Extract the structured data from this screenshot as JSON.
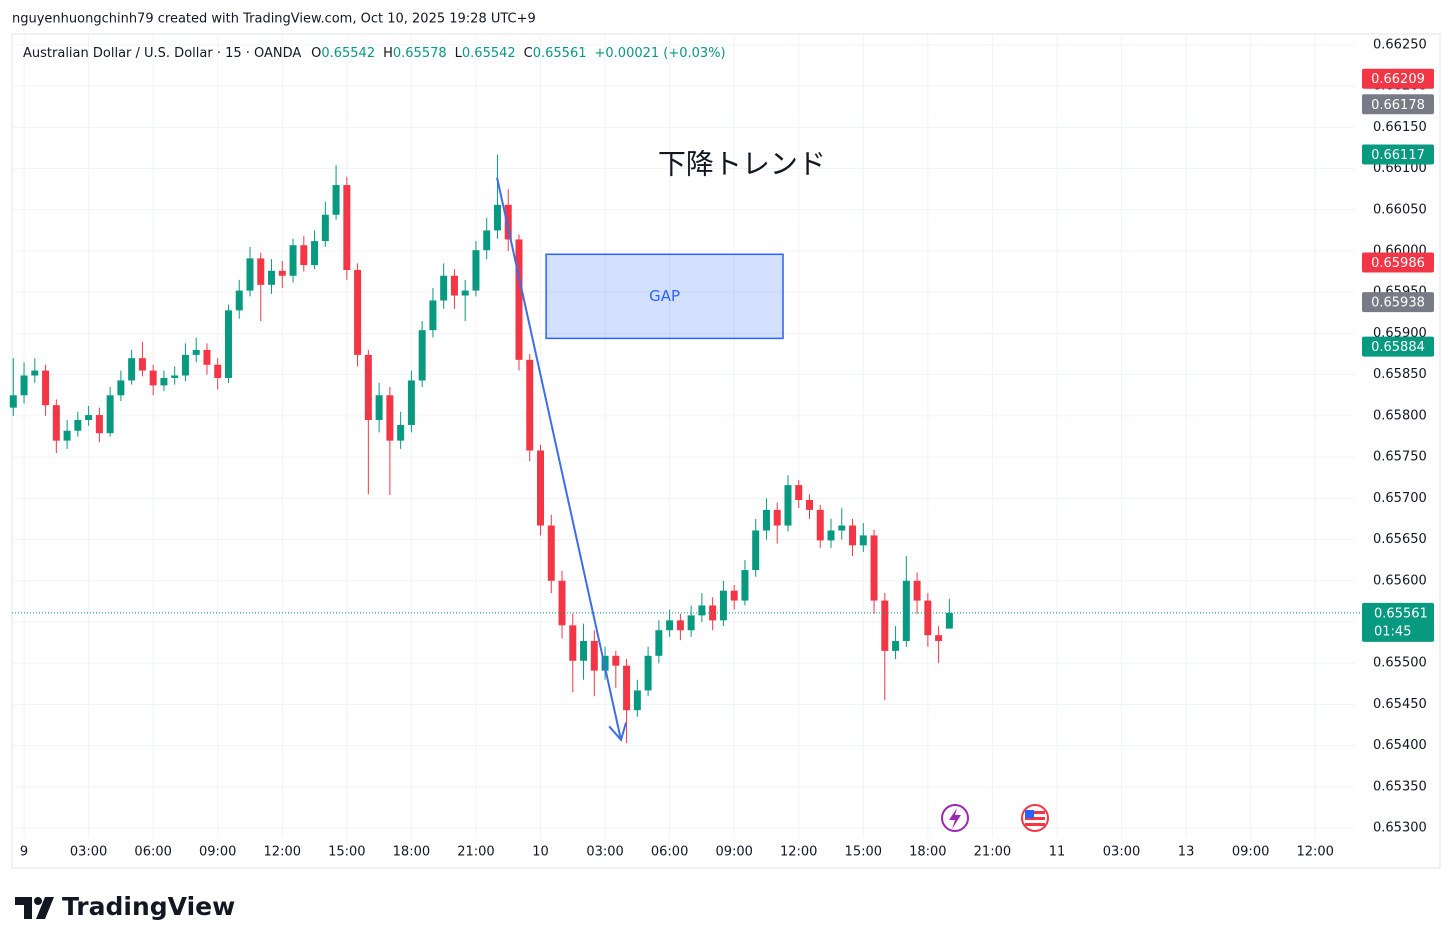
{
  "header": {
    "caption": "nguyenhuongchinh79 created with TradingView.com, Oct 10, 2025 19:28 UTC+9"
  },
  "footer": {
    "brand": "TradingView"
  },
  "chart_data": {
    "type": "candlestick",
    "title": "Australian Dollar / U.S. Dollar · 15 · OANDA",
    "ohlc_labels": [
      "O",
      "H",
      "L",
      "C"
    ],
    "change": "+0.00021 (+0.03%)",
    "up_color": "#089981",
    "down_color": "#f23645",
    "grid": true,
    "x": [
      -0.5,
      0,
      0.5,
      1,
      1.5,
      2,
      2.5,
      3,
      3.5,
      4,
      4.5,
      5,
      5.5,
      6,
      6.5,
      7,
      7.5,
      8,
      8.5,
      9,
      9.5,
      10,
      10.5,
      11,
      11.5,
      12,
      12.5,
      13,
      13.5,
      14,
      14.5,
      15,
      15.5,
      16,
      16.5,
      17,
      17.5,
      18,
      18.5,
      19,
      19.5,
      20,
      20.5,
      21,
      21.5,
      22,
      22.5,
      23,
      23.5,
      24,
      24.5,
      25,
      25.5,
      26,
      26.5,
      27,
      27.5,
      28,
      28.5,
      29,
      29.5,
      30,
      30.5,
      31,
      31.5,
      32,
      32.5,
      33,
      33.5,
      34,
      34.5,
      35,
      35.5,
      36,
      36.5,
      37,
      37.5,
      38,
      38.5,
      39,
      39.5,
      40,
      40.5,
      41,
      41.5,
      42,
      42.5,
      43
    ],
    "open": [
      0.6581,
      0.65825,
      0.65849,
      0.65855,
      0.65813,
      0.6577,
      0.65782,
      0.65795,
      0.65801,
      0.65779,
      0.65825,
      0.65843,
      0.6587,
      0.65855,
      0.65837,
      0.65846,
      0.65849,
      0.65874,
      0.6588,
      0.65862,
      0.65846,
      0.65928,
      0.65952,
      0.65991,
      0.65959,
      0.65976,
      0.6597,
      0.66007,
      0.65983,
      0.66012,
      0.66044,
      0.6608,
      0.65977,
      0.65874,
      0.65795,
      0.65825,
      0.6577,
      0.65789,
      0.65843,
      0.65904,
      0.6594,
      0.6597,
      0.65946,
      0.65952,
      0.66001,
      0.66025,
      0.66056,
      0.66014,
      0.65868,
      0.65758,
      0.65667,
      0.656,
      0.65546,
      0.65503,
      0.65527,
      0.65491,
      0.65509,
      0.65497,
      0.65443,
      0.65467,
      0.65509,
      0.6554,
      0.65552,
      0.6554,
      0.65558,
      0.6557,
      0.65552,
      0.65588,
      0.65576,
      0.65613,
      0.65661,
      0.65686,
      0.65667,
      0.65716,
      0.65698,
      0.65686,
      0.65649,
      0.65661,
      0.65667,
      0.65643,
      0.65655,
      0.65576,
      0.65515,
      0.65527,
      0.656,
      0.65576,
      0.65534,
      0.65542
    ],
    "high": [
      0.6587,
      0.65865,
      0.6587,
      0.65862,
      0.6582,
      0.65795,
      0.65805,
      0.65812,
      0.6581,
      0.65835,
      0.65855,
      0.6588,
      0.6589,
      0.65862,
      0.65855,
      0.6586,
      0.65888,
      0.65895,
      0.65888,
      0.6587,
      0.65935,
      0.65965,
      0.66005,
      0.65998,
      0.6599,
      0.65988,
      0.66015,
      0.66018,
      0.66025,
      0.6606,
      0.66104,
      0.6609,
      0.65985,
      0.6588,
      0.6584,
      0.65835,
      0.65805,
      0.65855,
      0.65915,
      0.65955,
      0.65985,
      0.65978,
      0.65965,
      0.66012,
      0.6604,
      0.66117,
      0.66075,
      0.6602,
      0.65875,
      0.65765,
      0.6568,
      0.65612,
      0.6556,
      0.65548,
      0.6554,
      0.6552,
      0.65515,
      0.65505,
      0.6548,
      0.6552,
      0.65552,
      0.65565,
      0.6556,
      0.6557,
      0.65585,
      0.6558,
      0.656,
      0.65595,
      0.65625,
      0.65675,
      0.657,
      0.65695,
      0.65728,
      0.65722,
      0.65705,
      0.65692,
      0.65675,
      0.65688,
      0.65675,
      0.6567,
      0.65662,
      0.65585,
      0.65545,
      0.6563,
      0.6561,
      0.65585,
      0.65545,
      0.65578
    ],
    "low": [
      0.658,
      0.65815,
      0.6584,
      0.658,
      0.65755,
      0.6576,
      0.65775,
      0.65788,
      0.65768,
      0.65775,
      0.65818,
      0.65838,
      0.65848,
      0.65825,
      0.6583,
      0.65838,
      0.65842,
      0.65865,
      0.6585,
      0.65832,
      0.6584,
      0.65918,
      0.65945,
      0.65915,
      0.65948,
      0.65955,
      0.65962,
      0.65975,
      0.65978,
      0.66005,
      0.66038,
      0.65965,
      0.6586,
      0.65705,
      0.6578,
      0.65704,
      0.6576,
      0.6578,
      0.65835,
      0.65895,
      0.6593,
      0.6593,
      0.65915,
      0.65945,
      0.6599,
      0.66015,
      0.66,
      0.65855,
      0.65745,
      0.65655,
      0.65585,
      0.6553,
      0.65465,
      0.6548,
      0.6546,
      0.6548,
      0.6547,
      0.65403,
      0.65435,
      0.6546,
      0.655,
      0.65532,
      0.65528,
      0.65532,
      0.6555,
      0.6554,
      0.65545,
      0.65565,
      0.6557,
      0.65605,
      0.6565,
      0.65645,
      0.6566,
      0.65688,
      0.65675,
      0.6564,
      0.6564,
      0.6565,
      0.6563,
      0.65635,
      0.6556,
      0.65455,
      0.65505,
      0.6552,
      0.6556,
      0.6552,
      0.655,
      0.65542
    ],
    "close": [
      0.65825,
      0.65849,
      0.65855,
      0.65813,
      0.6577,
      0.65782,
      0.65795,
      0.65801,
      0.65779,
      0.65825,
      0.65843,
      0.6587,
      0.65855,
      0.65837,
      0.65846,
      0.65849,
      0.65874,
      0.6588,
      0.65862,
      0.65846,
      0.65928,
      0.65952,
      0.65991,
      0.65959,
      0.65976,
      0.6597,
      0.66007,
      0.65983,
      0.66012,
      0.66044,
      0.6608,
      0.65977,
      0.65874,
      0.65795,
      0.65825,
      0.6577,
      0.65789,
      0.65843,
      0.65904,
      0.6594,
      0.6597,
      0.65946,
      0.65952,
      0.66001,
      0.66025,
      0.66056,
      0.66014,
      0.65868,
      0.65758,
      0.65667,
      0.656,
      0.65546,
      0.65503,
      0.65527,
      0.65491,
      0.65509,
      0.65497,
      0.65443,
      0.65467,
      0.65509,
      0.6554,
      0.65552,
      0.6554,
      0.65558,
      0.6557,
      0.65552,
      0.65588,
      0.65576,
      0.65613,
      0.65661,
      0.65686,
      0.65667,
      0.65716,
      0.65698,
      0.65686,
      0.65649,
      0.65661,
      0.65667,
      0.65643,
      0.65655,
      0.65576,
      0.65515,
      0.65527,
      0.656,
      0.65576,
      0.65534,
      0.65527,
      0.65561
    ],
    "xlim": [
      -0.56,
      61.85
    ],
    "ylim": [
      0.65288,
      0.66262
    ],
    "xticks": [
      {
        "value": 0,
        "label": "9"
      },
      {
        "value": 3,
        "label": "03:00"
      },
      {
        "value": 6,
        "label": "06:00"
      },
      {
        "value": 9,
        "label": "09:00"
      },
      {
        "value": 12,
        "label": "12:00"
      },
      {
        "value": 15,
        "label": "15:00"
      },
      {
        "value": 18,
        "label": "18:00"
      },
      {
        "value": 21,
        "label": "21:00"
      },
      {
        "value": 24,
        "label": "10"
      },
      {
        "value": 27,
        "label": "03:00"
      },
      {
        "value": 30,
        "label": "06:00"
      },
      {
        "value": 33,
        "label": "09:00"
      },
      {
        "value": 36,
        "label": "12:00"
      },
      {
        "value": 39,
        "label": "15:00"
      },
      {
        "value": 42,
        "label": "18:00"
      },
      {
        "value": 45,
        "label": "21:00"
      },
      {
        "value": 48,
        "label": "11"
      },
      {
        "value": 51,
        "label": "03:00"
      },
      {
        "value": 54,
        "label": "13"
      },
      {
        "value": 57,
        "label": "09:00"
      },
      {
        "value": 60,
        "label": "12:00"
      }
    ],
    "yticks": [
      {
        "value": 0.653,
        "label": "0.65300"
      },
      {
        "value": 0.6535,
        "label": "0.65350"
      },
      {
        "value": 0.654,
        "label": "0.65400"
      },
      {
        "value": 0.6545,
        "label": "0.65450"
      },
      {
        "value": 0.655,
        "label": "0.65500"
      },
      {
        "value": 0.6555,
        "label": "0.65550"
      },
      {
        "value": 0.656,
        "label": "0.65600"
      },
      {
        "value": 0.6565,
        "label": "0.65650"
      },
      {
        "value": 0.657,
        "label": "0.65700"
      },
      {
        "value": 0.6575,
        "label": "0.65750"
      },
      {
        "value": 0.658,
        "label": "0.65800"
      },
      {
        "value": 0.6585,
        "label": "0.65850"
      },
      {
        "value": 0.659,
        "label": "0.65900"
      },
      {
        "value": 0.6595,
        "label": "0.65950"
      },
      {
        "value": 0.66,
        "label": "0.66000"
      },
      {
        "value": 0.6605,
        "label": "0.66050"
      },
      {
        "value": 0.661,
        "label": "0.66100"
      },
      {
        "value": 0.6615,
        "label": "0.66150"
      },
      {
        "value": 0.662,
        "label": "0.66200"
      },
      {
        "value": 0.6625,
        "label": "0.66250"
      }
    ],
    "price_labels": [
      {
        "value": 0.66209,
        "color": "#f23645"
      },
      {
        "value": 0.66178,
        "color": "#787b86"
      },
      {
        "value": 0.66117,
        "color": "#089981"
      },
      {
        "value": 0.65986,
        "color": "#f23645"
      },
      {
        "value": 0.65938,
        "color": "#787b86"
      },
      {
        "value": 0.65884,
        "color": "#089981"
      }
    ],
    "countdown": "01:45",
    "trend_text": {
      "text": "下降トレンド",
      "x": 33.36,
      "y": 0.66104
    },
    "gap_box": {
      "text": "GAP",
      "x": [
        24.26,
        35.27
      ],
      "y": [
        0.65996,
        0.65894
      ],
      "color": "#2962ff"
    },
    "trend_arrow": {
      "x": [
        21.98,
        27.74
      ],
      "y": [
        0.66089,
        0.65407
      ],
      "color": "#3d6ee8"
    }
  }
}
